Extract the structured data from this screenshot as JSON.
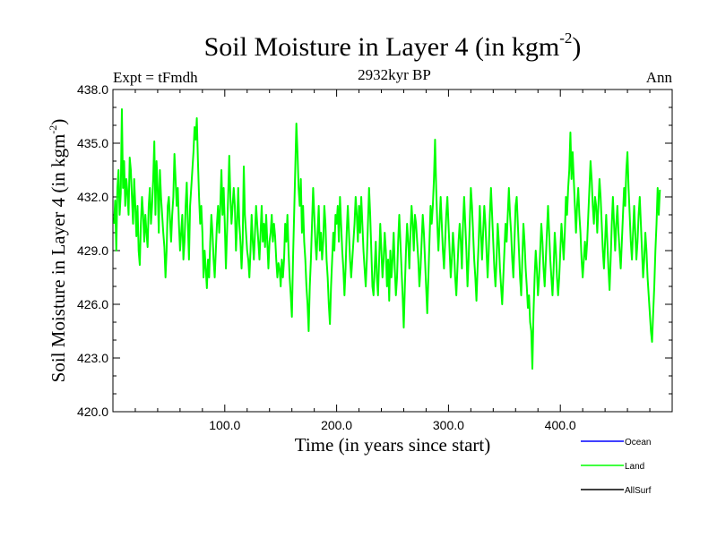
{
  "chart_data": {
    "type": "line",
    "title": "Soil Moisture in Layer 4 (in kgm",
    "title_superscript": "-2",
    "title_suffix": ")",
    "subtitle_left": "Expt = tFmdh",
    "subtitle_center": "2932kyr BP",
    "subtitle_right": "Ann",
    "xlabel": "Time (in years since start)",
    "ylabel": "Soil Moisture in Layer 4 (in kgm",
    "ylabel_superscript": "-2",
    "ylabel_suffix": ")",
    "xlim": [
      0,
      500
    ],
    "ylim": [
      420,
      438
    ],
    "xticks": [
      100,
      200,
      300,
      400
    ],
    "xtick_labels": [
      "100.0",
      "200.0",
      "300.0",
      "400.0"
    ],
    "yticks": [
      420,
      423,
      426,
      429,
      432,
      435,
      438
    ],
    "ytick_labels": [
      "420.0",
      "423.0",
      "426.0",
      "429.0",
      "432.0",
      "435.0",
      "438.0"
    ],
    "legend": [
      {
        "name": "Ocean",
        "color": "#0000ff"
      },
      {
        "name": "Land",
        "color": "#00ff00"
      },
      {
        "name": "AllSurf",
        "color": "#000000"
      }
    ],
    "series": [
      {
        "name": "Land",
        "color": "#00ff00",
        "x_start": 1,
        "x_step": 1,
        "values": [
          430.5,
          431.8,
          429.0,
          432.5,
          433.5,
          431.0,
          432.2,
          436.9,
          432.5,
          434.0,
          431.5,
          433.0,
          432.2,
          431.0,
          434.2,
          433.5,
          432.0,
          430.5,
          433.0,
          431.5,
          429.8,
          431.5,
          429.0,
          428.2,
          430.5,
          432.0,
          431.0,
          429.5,
          431.0,
          430.0,
          429.2,
          431.5,
          432.5,
          430.5,
          431.5,
          433.0,
          435.1,
          431.0,
          434.0,
          432.5,
          430.0,
          433.5,
          432.0,
          431.0,
          430.0,
          429.2,
          427.5,
          429.0,
          431.5,
          432.0,
          430.8,
          429.5,
          431.0,
          432.0,
          434.4,
          433.0,
          431.5,
          432.5,
          430.5,
          429.0,
          430.0,
          431.0,
          428.5,
          429.5,
          431.5,
          432.8,
          430.5,
          428.5,
          431.5,
          432.5,
          433.5,
          434.5,
          435.9,
          435.2,
          436.4,
          434.0,
          432.0,
          430.5,
          431.5,
          430.0,
          427.5,
          429.0,
          428.0,
          426.9,
          428.5,
          427.5,
          429.5,
          431.0,
          430.0,
          428.5,
          427.5,
          429.0,
          430.5,
          431.5,
          430.0,
          431.5,
          433.5,
          431.0,
          432.5,
          430.5,
          428.0,
          430.0,
          432.0,
          434.3,
          432.0,
          430.5,
          431.5,
          432.5,
          431.5,
          429.0,
          430.5,
          432.5,
          430.5,
          429.5,
          428.0,
          429.5,
          433.7,
          431.0,
          430.0,
          429.0,
          428.5,
          427.5,
          429.0,
          431.0,
          429.5,
          428.5,
          430.0,
          431.5,
          430.5,
          429.5,
          428.5,
          430.0,
          431.5,
          429.5,
          430.5,
          429.2,
          431.0,
          429.5,
          428.0,
          429.5,
          430.0,
          431.0,
          429.5,
          430.5,
          429.8,
          428.5,
          427.5,
          428.3,
          428.0,
          427.0,
          428.5,
          427.5,
          428.5,
          430.5,
          429.5,
          431.0,
          429.0,
          427.5,
          426.5,
          425.3,
          428.5,
          431.0,
          433.5,
          436.1,
          434.5,
          432.5,
          431.5,
          433.0,
          430.0,
          431.5,
          429.5,
          428.5,
          427.0,
          426.0,
          424.5,
          427.0,
          428.5,
          430.5,
          432.5,
          431.0,
          429.5,
          428.5,
          430.0,
          431.5,
          429.0,
          430.0,
          428.5,
          429.5,
          431.5,
          430.5,
          428.5,
          427.5,
          426.0,
          424.9,
          427.0,
          428.5,
          430.0,
          429.0,
          431.0,
          430.5,
          431.5,
          429.5,
          432.0,
          430.5,
          429.0,
          428.0,
          426.5,
          428.0,
          430.0,
          431.5,
          430.0,
          428.5,
          427.5,
          428.5,
          429.5,
          430.5,
          432.0,
          431.0,
          429.5,
          431.5,
          430.0,
          432.0,
          430.5,
          429.0,
          428.0,
          427.0,
          428.5,
          430.5,
          432.5,
          431.0,
          429.0,
          427.0,
          426.5,
          428.0,
          429.5,
          427.5,
          426.5,
          428.5,
          430.5,
          429.0,
          427.5,
          428.5,
          430.0,
          429.0,
          427.0,
          428.5,
          426.2,
          429.0,
          427.5,
          428.5,
          430.0,
          428.0,
          426.5,
          427.5,
          429.5,
          431.0,
          429.5,
          428.0,
          426.5,
          424.7,
          427.0,
          429.0,
          430.5,
          429.5,
          428.0,
          430.0,
          431.5,
          430.5,
          429.0,
          431.0,
          430.5,
          429.5,
          428.5,
          427.0,
          428.0,
          429.5,
          431.0,
          430.0,
          428.5,
          427.0,
          425.5,
          427.5,
          429.5,
          431.5,
          430.5,
          431.5,
          433.0,
          435.2,
          432.5,
          430.5,
          429.0,
          430.5,
          432.0,
          430.5,
          429.0,
          428.0,
          429.5,
          431.0,
          432.0,
          430.5,
          429.0,
          427.5,
          428.5,
          430.0,
          429.0,
          427.5,
          426.5,
          428.0,
          429.5,
          430.5,
          429.5,
          428.0,
          430.5,
          432.0,
          430.5,
          429.0,
          427.0,
          428.5,
          430.5,
          432.5,
          431.5,
          430.0,
          428.5,
          427.5,
          426.2,
          428.0,
          429.5,
          431.5,
          430.0,
          428.5,
          430.0,
          431.5,
          430.5,
          429.0,
          427.5,
          429.0,
          431.0,
          432.5,
          431.0,
          429.5,
          428.0,
          427.0,
          428.5,
          430.5,
          429.5,
          428.0,
          427.0,
          426.0,
          427.5,
          429.0,
          430.5,
          429.5,
          431.0,
          432.5,
          431.0,
          430.0,
          428.5,
          427.5,
          429.5,
          431.5,
          432.0,
          430.5,
          429.0,
          427.5,
          426.5,
          428.5,
          430.5,
          429.5,
          428.0,
          427.0,
          425.8,
          426.5,
          425.0,
          424.5,
          422.4,
          425.5,
          427.5,
          429.0,
          428.0,
          426.5,
          427.5,
          429.0,
          430.5,
          429.5,
          428.0,
          427.0,
          428.5,
          430.0,
          431.5,
          430.0,
          428.5,
          427.5,
          426.5,
          428.0,
          430.0,
          429.0,
          427.5,
          426.5,
          427.5,
          429.0,
          430.5,
          429.5,
          428.5,
          430.0,
          432.0,
          431.0,
          432.5,
          433.5,
          435.6,
          433.0,
          434.5,
          433.0,
          431.5,
          430.0,
          431.5,
          432.5,
          431.0,
          430.0,
          428.5,
          427.5,
          428.5,
          429.5,
          428.5,
          429.5,
          431.0,
          432.5,
          434.0,
          433.0,
          431.5,
          430.5,
          432.0,
          431.5,
          430.0,
          431.5,
          433.0,
          432.0,
          430.5,
          429.0,
          428.0,
          429.5,
          431.0,
          429.5,
          428.0,
          426.8,
          428.5,
          430.5,
          432.0,
          430.5,
          429.0,
          430.5,
          431.5,
          430.0,
          429.0,
          428.0,
          429.5,
          431.0,
          432.5,
          431.5,
          433.5,
          434.5,
          432.5,
          431.0,
          429.5,
          428.5,
          430.0,
          431.5,
          430.0,
          428.5,
          429.5,
          431.0,
          432.0,
          430.5,
          429.0,
          427.5,
          428.5,
          430.0,
          429.0,
          427.5,
          426.5,
          425.5,
          424.5,
          423.9,
          425.5,
          427.0,
          429.0,
          430.5,
          432.5,
          431.0,
          432.4
        ]
      },
      {
        "name": "Ocean",
        "color": "#0000ff",
        "values": []
      },
      {
        "name": "AllSurf",
        "color": "#000000",
        "values": []
      }
    ]
  }
}
